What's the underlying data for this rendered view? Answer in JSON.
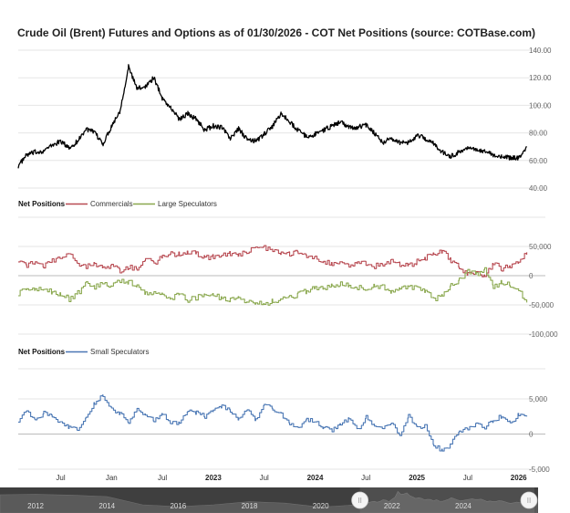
{
  "title": "Crude Oil (Brent) Futures and Options as of 01/30/2026 - COT Net Positions (source: COTBase.com)",
  "colors": {
    "price": "#000000",
    "commercials": "#b84a52",
    "large_speculators": "#8aa84e",
    "small_speculators": "#4a77b4",
    "grid": "#e6e6e6",
    "zero": "#bbbbbb",
    "navigator_bg": "#3f3f3f"
  },
  "panels": {
    "net_label_1": "Net Positions",
    "net_label_2": "Net Positions"
  },
  "x_axis": {
    "start": "2021-02",
    "end": "2026-02",
    "ticks": [
      {
        "date": "2021-07",
        "label": "Jul",
        "bold": false
      },
      {
        "date": "2022-01",
        "label": "Jan",
        "bold": false
      },
      {
        "date": "2022-07",
        "label": "Jul",
        "bold": false
      },
      {
        "date": "2023-01",
        "label": "2023",
        "bold": true
      },
      {
        "date": "2023-07",
        "label": "Jul",
        "bold": false
      },
      {
        "date": "2024-01",
        "label": "2024",
        "bold": true
      },
      {
        "date": "2024-07",
        "label": "Jul",
        "bold": false
      },
      {
        "date": "2025-01",
        "label": "2025",
        "bold": true
      },
      {
        "date": "2025-07",
        "label": "Jul",
        "bold": false
      },
      {
        "date": "2026-01",
        "label": "2026",
        "bold": true
      }
    ]
  },
  "navigator": {
    "labels": [
      "2012",
      "2014",
      "2016",
      "2018",
      "2020",
      "2022",
      "2024"
    ],
    "start_year": 2011,
    "end_year": 2026.1,
    "selected_from": 2021.1,
    "selected_to": 2026.1,
    "handle_glyph": "II"
  },
  "chart_data": [
    {
      "type": "line",
      "name": "price-panel",
      "title": "Crude Oil (Brent) Futures and Options as of 01/30/2026 - COT Net Positions (source: COTBase.com)",
      "y_ticks": [
        "40.00",
        "60.00",
        "80.00",
        "100.00",
        "120.00",
        "140.00"
      ],
      "ylim": [
        40,
        140
      ],
      "series": [
        {
          "x": [
            "2021-02",
            "2021-03",
            "2021-04",
            "2021-05",
            "2021-06",
            "2021-07",
            "2021-08",
            "2021-09",
            "2021-10",
            "2021-11",
            "2021-12",
            "2022-01",
            "2022-02",
            "2022-03",
            "2022-04",
            "2022-05",
            "2022-06",
            "2022-07",
            "2022-08",
            "2022-09",
            "2022-10",
            "2022-11",
            "2022-12",
            "2023-01",
            "2023-02",
            "2023-03",
            "2023-04",
            "2023-05",
            "2023-06",
            "2023-07",
            "2023-08",
            "2023-09",
            "2023-10",
            "2023-11",
            "2023-12",
            "2024-01",
            "2024-02",
            "2024-03",
            "2024-04",
            "2024-05",
            "2024-06",
            "2024-07",
            "2024-08",
            "2024-09",
            "2024-10",
            "2024-11",
            "2024-12",
            "2025-01",
            "2025-02",
            "2025-03",
            "2025-04",
            "2025-05",
            "2025-06",
            "2025-07",
            "2025-08",
            "2025-09",
            "2025-10",
            "2025-11",
            "2025-12",
            "2026-01",
            "2026-01-30"
          ],
          "values": [
            56,
            64,
            66,
            67,
            71,
            74,
            69,
            74,
            83,
            80,
            72,
            85,
            96,
            128,
            112,
            114,
            120,
            105,
            98,
            90,
            94,
            90,
            82,
            85,
            84,
            76,
            83,
            75,
            74,
            79,
            85,
            94,
            88,
            82,
            77,
            79,
            82,
            85,
            88,
            84,
            84,
            86,
            80,
            73,
            76,
            73,
            73,
            78,
            76,
            72,
            66,
            63,
            66,
            70,
            67,
            67,
            64,
            63,
            62,
            62,
            70
          ]
        }
      ]
    },
    {
      "type": "line",
      "name": "commercials-large-speculators-panel",
      "y_ticks": [
        "-100,000",
        "-50,000",
        "0",
        "50,000"
      ],
      "ylim": [
        -100000,
        50000
      ],
      "series": [
        {
          "name": "Commercials",
          "x": [
            "2021-02",
            "2021-03",
            "2021-04",
            "2021-05",
            "2021-06",
            "2021-07",
            "2021-08",
            "2021-09",
            "2021-10",
            "2021-11",
            "2021-12",
            "2022-01",
            "2022-02",
            "2022-03",
            "2022-04",
            "2022-05",
            "2022-06",
            "2022-07",
            "2022-08",
            "2022-09",
            "2022-10",
            "2022-11",
            "2022-12",
            "2023-01",
            "2023-02",
            "2023-03",
            "2023-04",
            "2023-05",
            "2023-06",
            "2023-07",
            "2023-08",
            "2023-09",
            "2023-10",
            "2023-11",
            "2023-12",
            "2024-01",
            "2024-02",
            "2024-03",
            "2024-04",
            "2024-05",
            "2024-06",
            "2024-07",
            "2024-08",
            "2024-09",
            "2024-10",
            "2024-11",
            "2024-12",
            "2025-01",
            "2025-02",
            "2025-03",
            "2025-04",
            "2025-05",
            "2025-06",
            "2025-07",
            "2025-08",
            "2025-09",
            "2025-10",
            "2025-11",
            "2025-12",
            "2026-01",
            "2026-01-30"
          ],
          "values": [
            28000,
            18000,
            22000,
            15000,
            25000,
            30000,
            42000,
            22000,
            15000,
            22000,
            12000,
            18000,
            8000,
            14000,
            12000,
            28000,
            22000,
            32000,
            38000,
            36000,
            40000,
            38000,
            30000,
            32000,
            36000,
            38000,
            35000,
            42000,
            45000,
            48000,
            44000,
            40000,
            38000,
            42000,
            35000,
            30000,
            25000,
            20000,
            22000,
            16000,
            24000,
            22000,
            16000,
            20000,
            25000,
            20000,
            16000,
            24000,
            30000,
            38000,
            42000,
            25000,
            15000,
            2000,
            8000,
            -2000,
            22000,
            12000,
            18000,
            24000,
            40000
          ]
        },
        {
          "name": "Large Speculators",
          "x": [
            "2021-02",
            "2021-03",
            "2021-04",
            "2021-05",
            "2021-06",
            "2021-07",
            "2021-08",
            "2021-09",
            "2021-10",
            "2021-11",
            "2021-12",
            "2022-01",
            "2022-02",
            "2022-03",
            "2022-04",
            "2022-05",
            "2022-06",
            "2022-07",
            "2022-08",
            "2022-09",
            "2022-10",
            "2022-11",
            "2022-12",
            "2023-01",
            "2023-02",
            "2023-03",
            "2023-04",
            "2023-05",
            "2023-06",
            "2023-07",
            "2023-08",
            "2023-09",
            "2023-10",
            "2023-11",
            "2023-12",
            "2024-01",
            "2024-02",
            "2024-03",
            "2024-04",
            "2024-05",
            "2024-06",
            "2024-07",
            "2024-08",
            "2024-09",
            "2024-10",
            "2024-11",
            "2024-12",
            "2025-01",
            "2025-02",
            "2025-03",
            "2025-04",
            "2025-05",
            "2025-06",
            "2025-07",
            "2025-08",
            "2025-09",
            "2025-10",
            "2025-11",
            "2025-12",
            "2026-01",
            "2026-01-30"
          ],
          "values": [
            -30000,
            -22000,
            -26000,
            -20000,
            -28000,
            -32000,
            -40000,
            -30000,
            -14000,
            -20000,
            -12000,
            -18000,
            -8000,
            -10000,
            -18000,
            -30000,
            -28000,
            -34000,
            -38000,
            -32000,
            -42000,
            -38000,
            -30000,
            -34000,
            -38000,
            -42000,
            -38000,
            -44000,
            -46000,
            -48000,
            -44000,
            -40000,
            -36000,
            -32000,
            -26000,
            -22000,
            -20000,
            -18000,
            -14000,
            -16000,
            -20000,
            -22000,
            -18000,
            -20000,
            -26000,
            -22000,
            -18000,
            -22000,
            -28000,
            -40000,
            -36000,
            -16000,
            -8000,
            8000,
            2000,
            12000,
            -20000,
            -10000,
            -16000,
            -26000,
            -46000
          ]
        }
      ]
    },
    {
      "type": "line",
      "name": "small-speculators-panel",
      "y_ticks": [
        "-5,000",
        "0",
        "5,000"
      ],
      "ylim": [
        -5000,
        5000
      ],
      "series": [
        {
          "name": "Small Speculators",
          "x": [
            "2021-02",
            "2021-03",
            "2021-04",
            "2021-05",
            "2021-06",
            "2021-07",
            "2021-08",
            "2021-09",
            "2021-10",
            "2021-11",
            "2021-12",
            "2022-01",
            "2022-02",
            "2022-03",
            "2022-04",
            "2022-05",
            "2022-06",
            "2022-07",
            "2022-08",
            "2022-09",
            "2022-10",
            "2022-11",
            "2022-12",
            "2023-01",
            "2023-02",
            "2023-03",
            "2023-04",
            "2023-05",
            "2023-06",
            "2023-07",
            "2023-08",
            "2023-09",
            "2023-10",
            "2023-11",
            "2023-12",
            "2024-01",
            "2024-02",
            "2024-03",
            "2024-04",
            "2024-05",
            "2024-06",
            "2024-07",
            "2024-08",
            "2024-09",
            "2024-10",
            "2024-11",
            "2024-12",
            "2025-01",
            "2025-02",
            "2025-03",
            "2025-04",
            "2025-05",
            "2025-06",
            "2025-07",
            "2025-08",
            "2025-09",
            "2025-10",
            "2025-11",
            "2025-12",
            "2026-01",
            "2026-01-30"
          ],
          "values": [
            2000,
            3500,
            1800,
            3000,
            2500,
            1500,
            1000,
            500,
            2500,
            4500,
            5500,
            3500,
            3000,
            1500,
            3500,
            2500,
            2000,
            3000,
            1500,
            1500,
            3500,
            3000,
            2500,
            3500,
            4000,
            3200,
            2200,
            3500,
            2000,
            4500,
            3500,
            2800,
            1500,
            1000,
            2000,
            1800,
            1000,
            500,
            1500,
            2200,
            500,
            2500,
            1200,
            700,
            1500,
            0,
            2500,
            1000,
            1200,
            -1500,
            -2500,
            -1500,
            500,
            800,
            1500,
            1000,
            2000,
            2500,
            1500,
            2800,
            2500
          ]
        }
      ]
    }
  ]
}
